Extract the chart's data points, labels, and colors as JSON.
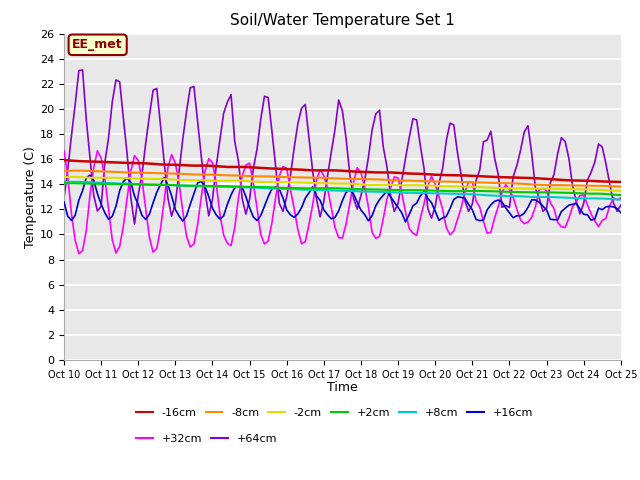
{
  "title": "Soil/Water Temperature Set 1",
  "xlabel": "Time",
  "ylabel": "Temperature (C)",
  "ylim": [
    0,
    26
  ],
  "yticks": [
    0,
    2,
    4,
    6,
    8,
    10,
    12,
    14,
    16,
    18,
    20,
    22,
    24,
    26
  ],
  "xtick_labels": [
    "Oct 10",
    "Oct 11",
    "Oct 12",
    "Oct 13",
    "Oct 14",
    "Oct 15",
    "Oct 16",
    "Oct 17",
    "Oct 18",
    "Oct 19",
    "Oct 20",
    "Oct 21",
    "Oct 22",
    "Oct 23",
    "Oct 24",
    "Oct 25"
  ],
  "annotation_text": "EE_met",
  "annotation_bg": "#ffffcc",
  "annotation_border": "#8b0000",
  "fig_bg": "#ffffff",
  "plot_bg": "#e8e8e8",
  "series_colors": {
    "-16cm": "#cc0000",
    "-8cm": "#ff8800",
    "-2cm": "#dddd00",
    "+2cm": "#00cc00",
    "+8cm": "#00cccc",
    "+16cm": "#0000cc",
    "+32cm": "#ff00ff",
    "+64cm": "#8800cc"
  },
  "series_order": [
    "-16cm",
    "-8cm",
    "-2cm",
    "+2cm",
    "+8cm",
    "+16cm",
    "+32cm",
    "+64cm"
  ],
  "legend_row1": [
    "-16cm",
    "-8cm",
    "-2cm",
    "+2cm",
    "+8cm",
    "+16cm"
  ],
  "legend_row2": [
    "+32cm",
    "+64cm"
  ]
}
